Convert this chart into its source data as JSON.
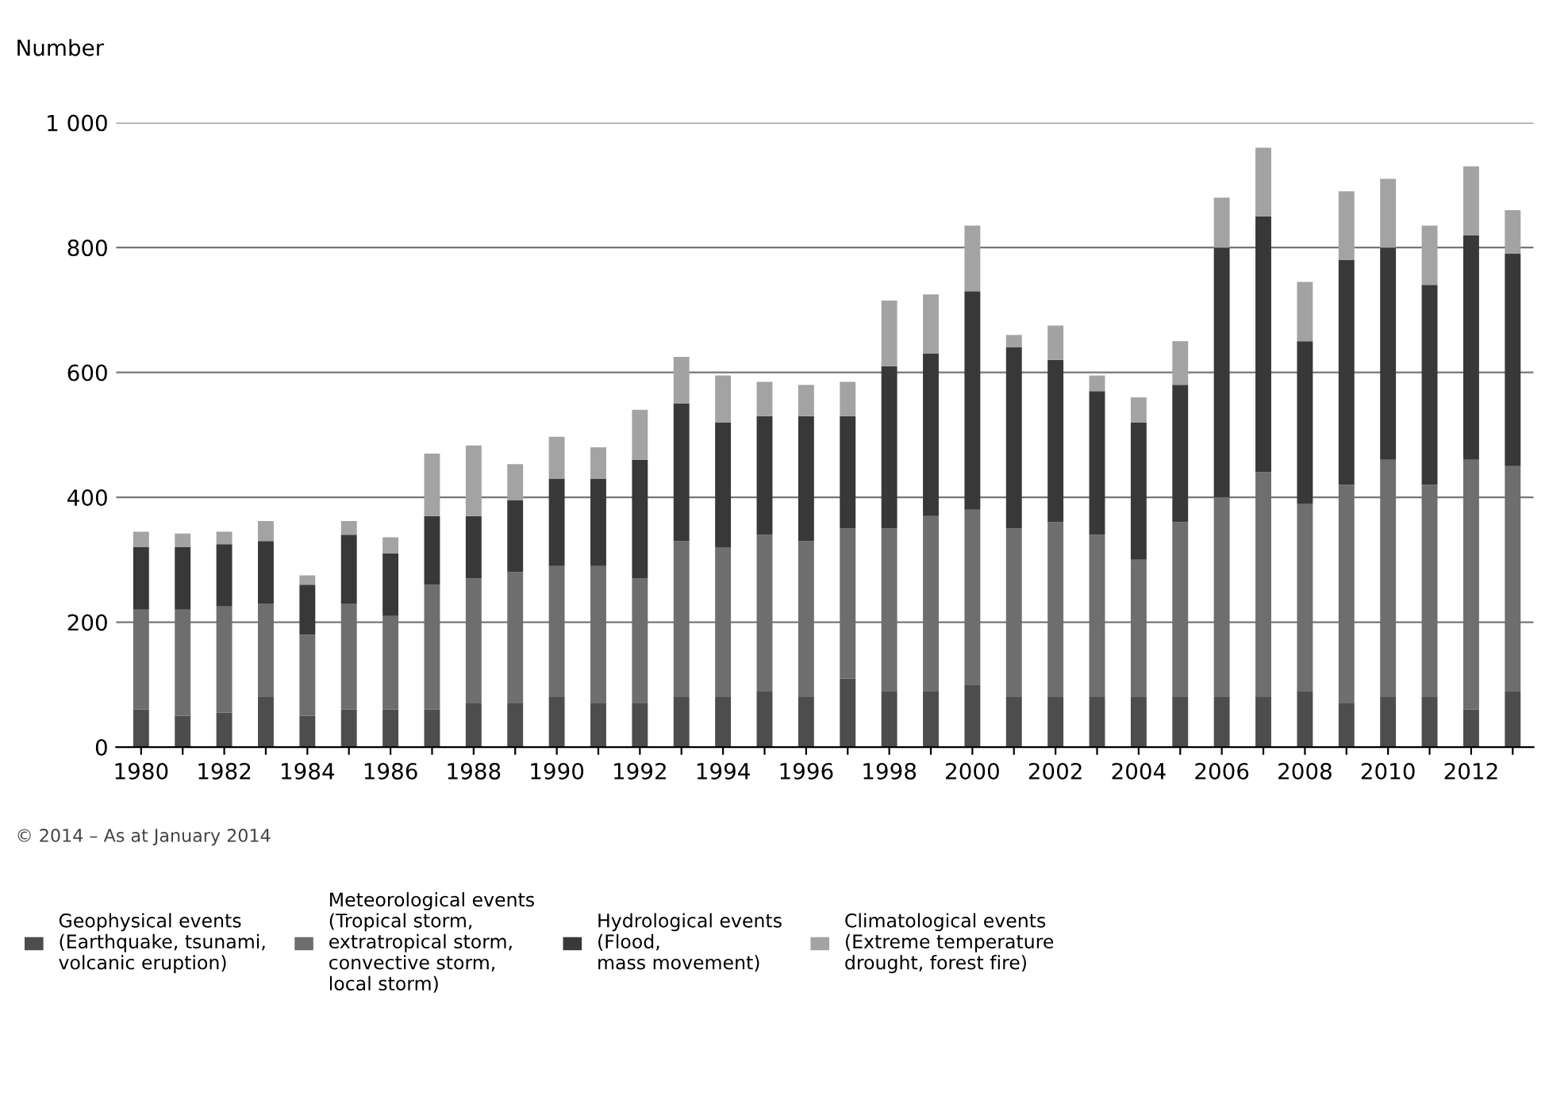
{
  "chart_data": {
    "type": "bar",
    "stacked": true,
    "ylabel": "Number",
    "categories": [
      "1980",
      null,
      "1982",
      null,
      "1984",
      null,
      "1986",
      null,
      "1988",
      null,
      "1990",
      null,
      "1992",
      null,
      "1994",
      null,
      "1996",
      null,
      "1998",
      null,
      "2000",
      null,
      "2002",
      null,
      "2004",
      null,
      "2006",
      null,
      "2008",
      null,
      "2010",
      null,
      "2012",
      null
    ],
    "series": [
      {
        "name": "Geophysical events\n(Earthquake, tsunami,\nvolcanic eruption)",
        "color": "#4d4d4d",
        "values": [
          60,
          50,
          55,
          80,
          50,
          60,
          60,
          60,
          70,
          70,
          80,
          70,
          70,
          80,
          80,
          90,
          80,
          110,
          90,
          90,
          100,
          80,
          80,
          80,
          80,
          80,
          80,
          80,
          90,
          70,
          80,
          80,
          60,
          90
        ]
      },
      {
        "name": "Meteorological events\n(Tropical storm,\nextratropical storm,\nconvective storm,\nlocal storm)",
        "color": "#6e6e6e",
        "values": [
          160,
          170,
          170,
          150,
          130,
          170,
          150,
          200,
          200,
          210,
          210,
          220,
          200,
          250,
          240,
          250,
          250,
          240,
          260,
          280,
          280,
          270,
          280,
          260,
          220,
          280,
          320,
          360,
          300,
          350,
          380,
          340,
          400,
          360
        ]
      },
      {
        "name": "Hydrological events\n(Flood,\nmass movement)",
        "color": "#383838",
        "values": [
          100,
          100,
          100,
          100,
          80,
          110,
          100,
          110,
          100,
          115,
          140,
          140,
          190,
          220,
          200,
          190,
          200,
          180,
          260,
          260,
          350,
          290,
          260,
          230,
          220,
          220,
          400,
          410,
          260,
          360,
          340,
          320,
          360,
          340
        ]
      },
      {
        "name": "Climatological events\n(Extreme temperature\ndrought, forest fire)",
        "color": "#a3a3a3",
        "values": [
          25,
          22,
          20,
          32,
          15,
          22,
          26,
          100,
          113,
          58,
          67,
          50,
          80,
          75,
          75,
          55,
          50,
          55,
          105,
          95,
          105,
          20,
          55,
          25,
          40,
          70,
          80,
          110,
          95,
          110,
          110,
          95,
          110,
          70
        ]
      }
    ],
    "ylim": [
      0,
      1000
    ],
    "yticks": [
      0,
      200,
      400,
      600,
      800,
      {
        "value": 1000,
        "label": "1 000"
      }
    ],
    "grid": "y",
    "legend": "bottom",
    "annotations": [
      "© 2014 – As at January 2014"
    ]
  }
}
